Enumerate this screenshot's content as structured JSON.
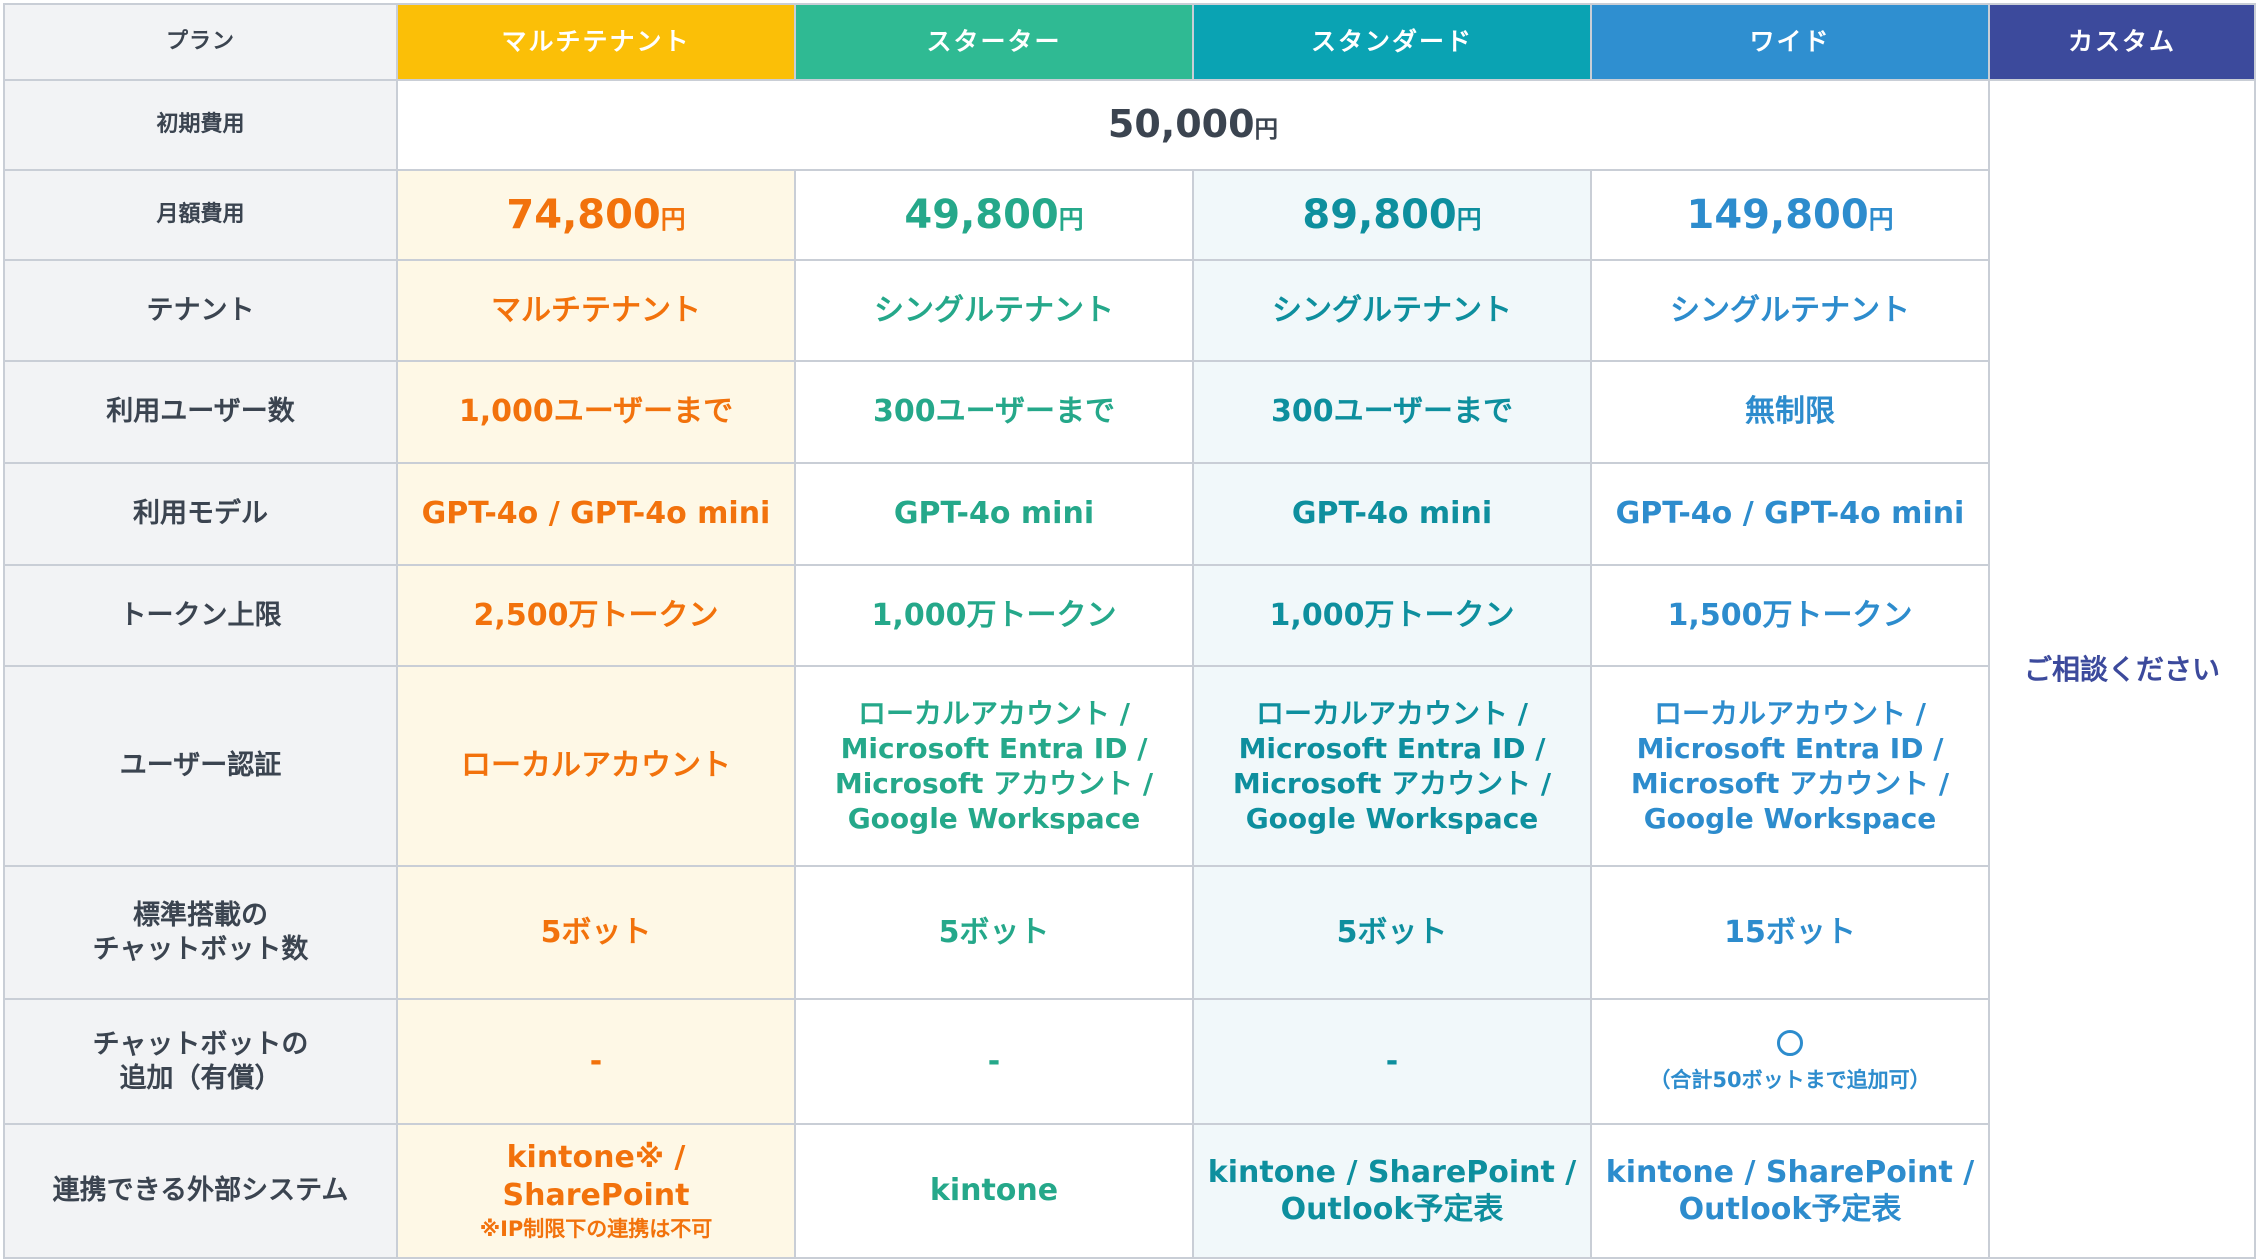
{
  "header": {
    "label": "プラン",
    "plans": {
      "multi": "マルチテナント",
      "starter": "スターター",
      "standard": "スタンダード",
      "wide": "ワイド",
      "custom": "カスタム"
    }
  },
  "rows": {
    "initial_fee": {
      "label": "初期費用",
      "value": "50,000",
      "unit": "円"
    },
    "monthly_fee": {
      "label": "月額費用",
      "multi": "74,800",
      "starter": "49,800",
      "standard": "89,800",
      "wide": "149,800",
      "unit": "円"
    },
    "tenant": {
      "label": "テナント",
      "multi": "マルチテナント",
      "starter": "シングルテナント",
      "standard": "シングルテナント",
      "wide": "シングルテナント"
    },
    "users": {
      "label": "利用ユーザー数",
      "multi": "1,000ユーザーまで",
      "starter": "300ユーザーまで",
      "standard": "300ユーザーまで",
      "wide": "無制限"
    },
    "model": {
      "label": "利用モデル",
      "multi": "GPT-4o / GPT-4o mini",
      "starter": "GPT-4o mini",
      "standard": "GPT-4o mini",
      "wide": "GPT-4o / GPT-4o mini"
    },
    "token": {
      "label": "トークン上限",
      "multi": "2,500万トークン",
      "starter": "1,000万トークン",
      "standard": "1,000万トークン",
      "wide": "1,500万トークン"
    },
    "auth": {
      "label": "ユーザー認証",
      "multi": "ローカルアカウント",
      "full_line1": "ローカルアカウント /",
      "full_line2": "Microsoft Entra ID /",
      "full_line3": "Microsoft アカウント /",
      "full_line4": "Google Workspace"
    },
    "bots": {
      "label_line1": "標準搭載の",
      "label_line2": "チャットボット数",
      "multi": "5ボット",
      "starter": "5ボット",
      "standard": "5ボット",
      "wide": "15ボット"
    },
    "bot_add": {
      "label_line1": "チャットボットの",
      "label_line2": "追加（有償）",
      "multi": "-",
      "starter": "-",
      "standard": "-",
      "wide_note": "（合計50ボットまで追加可）"
    },
    "integration": {
      "label": "連携できる外部システム",
      "multi": "kintone※ / SharePoint",
      "multi_note": "※IP制限下の連携は不可",
      "starter": "kintone",
      "standard_line1": "kintone / SharePoint /",
      "standard_line2": "Outlook予定表",
      "wide_line1": "kintone / SharePoint /",
      "wide_line2": "Outlook予定表"
    }
  },
  "custom_note": "ご相談ください",
  "colors": {
    "multi": "#fbbf07",
    "starter": "#2fba93",
    "standard": "#0aa3b3",
    "wide": "#2f8fd0",
    "custom": "#3c4a9c"
  }
}
